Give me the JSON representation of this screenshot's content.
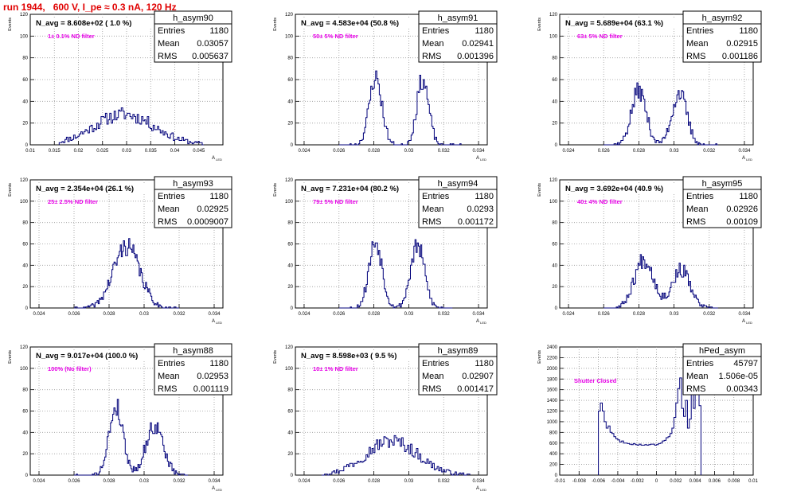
{
  "header": {
    "title": "run 1944,   600 V, I_pe ≈ 0.3 nA, 120 Hz"
  },
  "colors": {
    "hist": "#00007a",
    "annotation": "#e600e6",
    "title": "#e00000",
    "grid": "#9a9a9a"
  },
  "chart_data": [
    {
      "type": "histogram",
      "name": "h_asym90",
      "avg_text": "N_avg = 8.608e+02 ( 1.0 %)",
      "filter_text": "1± 0.1% ND filter",
      "stats": [
        [
          "Entries",
          "1180"
        ],
        [
          "Mean",
          "0.03057"
        ],
        [
          "RMS",
          "0.005637"
        ]
      ],
      "ylabel": "Events",
      "xlabel": "A_LED",
      "xlim": [
        0.01,
        0.05
      ],
      "ylim": [
        0,
        120
      ],
      "xticks": [
        0.01,
        0.015,
        0.02,
        0.025,
        0.03,
        0.035,
        0.04,
        0.045
      ],
      "xtick_labels": [
        "0.01",
        "0.015",
        "0.02",
        "0.025",
        "0.03",
        "0.035",
        "0.04",
        "0.045"
      ],
      "yticks": [
        0,
        20,
        40,
        60,
        80,
        100,
        120
      ],
      "peaks": [
        {
          "mu": 0.0295,
          "sigma": 0.0063,
          "a": 28
        }
      ],
      "n_bins": 100,
      "x_start": 0.016,
      "x_end": 0.046,
      "seed": 11
    },
    {
      "type": "histogram",
      "name": "h_asym91",
      "avg_text": "N_avg = 4.583e+04 (50.8 %)",
      "filter_text": "50± 5% ND filter",
      "stats": [
        [
          "Entries",
          "1180"
        ],
        [
          "Mean",
          "0.02941"
        ],
        [
          "RMS",
          "0.001396"
        ]
      ],
      "ylabel": "Events",
      "xlabel": "A_LED",
      "xlim": [
        0.0235,
        0.0345
      ],
      "ylim": [
        0,
        120
      ],
      "xticks": [
        0.024,
        0.026,
        0.028,
        0.03,
        0.032,
        0.034
      ],
      "xtick_labels": [
        "0.024",
        "0.026",
        "0.028",
        "0.03",
        "0.032",
        "0.034"
      ],
      "yticks": [
        0,
        20,
        40,
        60,
        80,
        100,
        120
      ],
      "peaks": [
        {
          "mu": 0.0281,
          "sigma": 0.00036,
          "a": 62
        },
        {
          "mu": 0.0308,
          "sigma": 0.00034,
          "a": 60
        }
      ],
      "n_bins": 100,
      "x_start": 0.026,
      "x_end": 0.033,
      "seed": 23
    },
    {
      "type": "histogram",
      "name": "h_asym92",
      "avg_text": "N_avg = 5.689e+04 (63.1 %)",
      "filter_text": "63± 5% ND filter",
      "stats": [
        [
          "Entries",
          "1180"
        ],
        [
          "Mean",
          "0.02915"
        ],
        [
          "RMS",
          "0.001186"
        ]
      ],
      "ylabel": "Events",
      "xlabel": "A_LED",
      "xlim": [
        0.0235,
        0.0345
      ],
      "ylim": [
        0,
        120
      ],
      "xticks": [
        0.024,
        0.026,
        0.028,
        0.03,
        0.032,
        0.034
      ],
      "xtick_labels": [
        "0.024",
        "0.026",
        "0.028",
        "0.03",
        "0.032",
        "0.034"
      ],
      "yticks": [
        0,
        20,
        40,
        60,
        80,
        100,
        120
      ],
      "peaks": [
        {
          "mu": 0.028,
          "sigma": 0.00042,
          "a": 50
        },
        {
          "mu": 0.0303,
          "sigma": 0.00042,
          "a": 48
        }
      ],
      "n_bins": 100,
      "x_start": 0.026,
      "x_end": 0.0325,
      "seed": 37
    },
    {
      "type": "histogram",
      "name": "h_asym93",
      "avg_text": "N_avg = 2.354e+04 (26.1 %)",
      "filter_text": "25± 2.5% ND filter",
      "stats": [
        [
          "Entries",
          "1180"
        ],
        [
          "Mean",
          "0.02925"
        ],
        [
          "RMS",
          "0.0009007"
        ]
      ],
      "ylabel": "Events",
      "xlabel": "A_LED",
      "xlim": [
        0.0235,
        0.0345
      ],
      "ylim": [
        0,
        120
      ],
      "xticks": [
        0.024,
        0.026,
        0.028,
        0.03,
        0.032,
        0.034
      ],
      "xtick_labels": [
        "0.024",
        "0.026",
        "0.028",
        "0.03",
        "0.032",
        "0.034"
      ],
      "yticks": [
        0,
        20,
        40,
        60,
        80,
        100,
        120
      ],
      "peaks": [
        {
          "mu": 0.029,
          "sigma": 0.00075,
          "a": 58
        }
      ],
      "n_bins": 100,
      "x_start": 0.026,
      "x_end": 0.032,
      "seed": 41
    },
    {
      "type": "histogram",
      "name": "h_asym94",
      "avg_text": "N_avg = 7.231e+04 (80.2 %)",
      "filter_text": "79± 5% ND filter",
      "stats": [
        [
          "Entries",
          "1180"
        ],
        [
          "Mean",
          "0.0293"
        ],
        [
          "RMS",
          "0.001172"
        ]
      ],
      "ylabel": "Events",
      "xlabel": "A_LED",
      "xlim": [
        0.0235,
        0.0345
      ],
      "ylim": [
        0,
        120
      ],
      "xticks": [
        0.024,
        0.026,
        0.028,
        0.03,
        0.032,
        0.034
      ],
      "xtick_labels": [
        "0.024",
        "0.026",
        "0.028",
        "0.03",
        "0.032",
        "0.034"
      ],
      "yticks": [
        0,
        20,
        40,
        60,
        80,
        100,
        120
      ],
      "peaks": [
        {
          "mu": 0.0281,
          "sigma": 0.00038,
          "a": 62
        },
        {
          "mu": 0.0305,
          "sigma": 0.0004,
          "a": 58
        }
      ],
      "n_bins": 100,
      "x_start": 0.026,
      "x_end": 0.0325,
      "seed": 53
    },
    {
      "type": "histogram",
      "name": "h_asym95",
      "avg_text": "N_avg = 3.692e+04 (40.9 %)",
      "filter_text": "40± 4% ND filter",
      "stats": [
        [
          "Entries",
          "1180"
        ],
        [
          "Mean",
          "0.02926"
        ],
        [
          "RMS",
          "0.00109"
        ]
      ],
      "ylabel": "Events",
      "xlabel": "A_LED",
      "xlim": [
        0.0235,
        0.0345
      ],
      "ylim": [
        0,
        120
      ],
      "xticks": [
        0.024,
        0.026,
        0.028,
        0.03,
        0.032,
        0.034
      ],
      "xtick_labels": [
        "0.024",
        "0.026",
        "0.028",
        "0.03",
        "0.032",
        "0.034"
      ],
      "yticks": [
        0,
        20,
        40,
        60,
        80,
        100,
        120
      ],
      "peaks": [
        {
          "mu": 0.0283,
          "sigma": 0.00055,
          "a": 46
        },
        {
          "mu": 0.0304,
          "sigma": 0.0005,
          "a": 36
        }
      ],
      "n_bins": 100,
      "x_start": 0.026,
      "x_end": 0.0325,
      "seed": 67
    },
    {
      "type": "histogram",
      "name": "h_asym88",
      "avg_text": "N_avg = 9.017e+04 (100.0 %)",
      "filter_text": "100% (No filter)",
      "stats": [
        [
          "Entries",
          "1180"
        ],
        [
          "Mean",
          "0.02953"
        ],
        [
          "RMS",
          "0.001119"
        ]
      ],
      "ylabel": "Events",
      "xlabel": "A_LED",
      "xlim": [
        0.0235,
        0.0345
      ],
      "ylim": [
        0,
        120
      ],
      "xticks": [
        0.024,
        0.026,
        0.028,
        0.03,
        0.032,
        0.034
      ],
      "xtick_labels": [
        "0.024",
        "0.026",
        "0.028",
        "0.03",
        "0.032",
        "0.034"
      ],
      "yticks": [
        0,
        20,
        40,
        60,
        80,
        100,
        120
      ],
      "peaks": [
        {
          "mu": 0.0284,
          "sigma": 0.0004,
          "a": 64
        },
        {
          "mu": 0.0306,
          "sigma": 0.0005,
          "a": 46
        }
      ],
      "n_bins": 100,
      "x_start": 0.026,
      "x_end": 0.0325,
      "seed": 79
    },
    {
      "type": "histogram",
      "name": "h_asym89",
      "avg_text": "N_avg = 8.598e+03 ( 9.5 %)",
      "filter_text": "10± 1% ND filter",
      "stats": [
        [
          "Entries",
          "1180"
        ],
        [
          "Mean",
          "0.02907"
        ],
        [
          "RMS",
          "0.001417"
        ]
      ],
      "ylabel": "Events",
      "xlabel": "A_LED",
      "xlim": [
        0.0235,
        0.0345
      ],
      "ylim": [
        0,
        120
      ],
      "xticks": [
        0.024,
        0.026,
        0.028,
        0.03,
        0.032,
        0.034
      ],
      "xtick_labels": [
        "0.024",
        "0.026",
        "0.028",
        "0.03",
        "0.032",
        "0.034"
      ],
      "yticks": [
        0,
        20,
        40,
        60,
        80,
        100,
        120
      ],
      "peaks": [
        {
          "mu": 0.029,
          "sigma": 0.0015,
          "a": 32
        }
      ],
      "n_bins": 100,
      "x_start": 0.025,
      "x_end": 0.0335,
      "seed": 97
    },
    {
      "type": "histogram",
      "name": "hPed_asym",
      "avg_text": "",
      "filter_text": "Shutter Closed",
      "stats": [
        [
          "Entries",
          "45797"
        ],
        [
          "Mean",
          "1.506e-05"
        ],
        [
          "RMS",
          "0.00343"
        ]
      ],
      "ylabel": "Events",
      "xlabel": "",
      "xlim": [
        -0.01,
        0.01
      ],
      "ylim": [
        0,
        2400
      ],
      "xticks": [
        -0.01,
        -0.008,
        -0.006,
        -0.004,
        -0.002,
        0,
        0.002,
        0.004,
        0.006,
        0.008,
        0.01
      ],
      "xtick_labels": [
        "-0.01",
        "-0.008",
        "-0.006",
        "-0.004",
        "-0.002",
        "0",
        "0.002",
        "0.004",
        "0.006",
        "0.008",
        "0.01"
      ],
      "yticks": [
        0,
        200,
        400,
        600,
        800,
        1000,
        1200,
        1400,
        1600,
        1800,
        2000,
        2200,
        2400
      ],
      "profile": [
        [
          -0.0059,
          1200
        ],
        [
          -0.0057,
          1350
        ],
        [
          -0.0055,
          1200
        ],
        [
          -0.0053,
          1000
        ],
        [
          -0.0051,
          880
        ],
        [
          -0.0049,
          920
        ],
        [
          -0.0047,
          800
        ],
        [
          -0.0045,
          780
        ],
        [
          -0.0043,
          720
        ],
        [
          -0.0041,
          680
        ],
        [
          -0.0039,
          660
        ],
        [
          -0.0037,
          620
        ],
        [
          -0.0035,
          640
        ],
        [
          -0.0033,
          600
        ],
        [
          -0.0031,
          600
        ],
        [
          -0.0029,
          590
        ],
        [
          -0.0027,
          580
        ],
        [
          -0.0025,
          570
        ],
        [
          -0.0023,
          590
        ],
        [
          -0.0021,
          570
        ],
        [
          -0.0019,
          560
        ],
        [
          -0.0017,
          580
        ],
        [
          -0.0015,
          560
        ],
        [
          -0.0013,
          560
        ],
        [
          -0.0011,
          570
        ],
        [
          -0.0009,
          560
        ],
        [
          -0.0007,
          570
        ],
        [
          -0.0005,
          580
        ],
        [
          -0.0003,
          580
        ],
        [
          -0.0001,
          560
        ],
        [
          0.0001,
          570
        ],
        [
          0.0003,
          590
        ],
        [
          0.0005,
          600
        ],
        [
          0.0007,
          640
        ],
        [
          0.0009,
          650
        ],
        [
          0.0011,
          700
        ],
        [
          0.0013,
          720
        ],
        [
          0.0015,
          780
        ],
        [
          0.0017,
          880
        ],
        [
          0.0019,
          1080
        ],
        [
          0.0021,
          1350
        ],
        [
          0.0023,
          1620
        ],
        [
          0.0025,
          1820
        ],
        [
          0.0027,
          1250
        ],
        [
          0.0029,
          1100
        ],
        [
          0.0031,
          1400
        ],
        [
          0.0033,
          880
        ],
        [
          0.0035,
          1050
        ],
        [
          0.0037,
          1750
        ],
        [
          0.0039,
          1250
        ],
        [
          0.0041,
          2250
        ],
        [
          0.0043,
          2100
        ],
        [
          0.0045,
          1300
        ]
      ],
      "bin_width": 0.0002
    }
  ]
}
